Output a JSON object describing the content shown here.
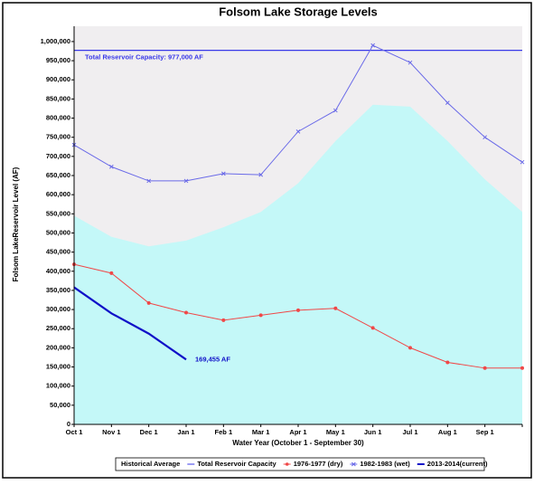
{
  "chart_data": {
    "type": "line",
    "title": "Folsom Lake Storage Levels",
    "ylabel": "Folsom LakeReservoir Level (AF)",
    "xlabel": "Water Year (October 1 - September 30)",
    "categories": [
      "Oct 1",
      "Nov 1",
      "Dec 1",
      "Jan 1",
      "Feb 1",
      "Mar 1",
      "Apr 1",
      "May 1",
      "Jun 1",
      "Jul 1",
      "Aug 1",
      "Sep 1",
      null
    ],
    "ylim": [
      0,
      1040000
    ],
    "yticks": [
      {
        "value": 0,
        "label": "0"
      },
      {
        "value": 50000,
        "label": "50,000"
      },
      {
        "value": 100000,
        "label": "100,000"
      },
      {
        "value": 150000,
        "label": "150,000"
      },
      {
        "value": 200000,
        "label": "200,000"
      },
      {
        "value": 250000,
        "label": "250,000"
      },
      {
        "value": 300000,
        "label": "300,000"
      },
      {
        "value": 350000,
        "label": "350,000"
      },
      {
        "value": 400000,
        "label": "400,000"
      },
      {
        "value": 450000,
        "label": "450,000"
      },
      {
        "value": 500000,
        "label": "500,000"
      },
      {
        "value": 550000,
        "label": "550,000"
      },
      {
        "value": 600000,
        "label": "600,000"
      },
      {
        "value": 650000,
        "label": "650,000"
      },
      {
        "value": 700000,
        "label": "700,000"
      },
      {
        "value": 750000,
        "label": "750,000"
      },
      {
        "value": 800000,
        "label": "800,000"
      },
      {
        "value": 850000,
        "label": "850,000"
      },
      {
        "value": 900000,
        "label": "900,000"
      },
      {
        "value": 950000,
        "label": "950,000"
      },
      {
        "value": 1000000,
        "label": "1,000,000"
      }
    ],
    "background_color": "#f0eef0",
    "series": [
      {
        "name": "Historical Average",
        "kind": "area",
        "color": "#c4f8f8",
        "values": [
          545000,
          490000,
          465000,
          480000,
          515000,
          555000,
          630000,
          740000,
          835000,
          830000,
          740000,
          640000,
          555000
        ]
      },
      {
        "name": "Total Reservoir Capacity",
        "kind": "constant",
        "color": "#3a3ae8",
        "value": 977000,
        "annotation": "Total Reservoir Capacity: 977,000 AF"
      },
      {
        "name": "1976-1977 (dry)",
        "kind": "line",
        "marker": "circle",
        "color": "#f04848",
        "values": [
          418000,
          395000,
          317000,
          292000,
          272000,
          285000,
          298000,
          303000,
          252000,
          200000,
          162000,
          147000,
          147000
        ]
      },
      {
        "name": "1982-1983 (wet)",
        "kind": "line",
        "marker": "cross",
        "color": "#6a6ae8",
        "values": [
          730000,
          673000,
          636000,
          636000,
          655000,
          652000,
          765000,
          820000,
          990000,
          945000,
          840000,
          750000,
          685000
        ]
      },
      {
        "name": "2013-2014(current)",
        "kind": "thick",
        "color": "#1010c8",
        "values": [
          358000,
          290000,
          237000,
          169455,
          null,
          null,
          null,
          null,
          null,
          null,
          null,
          null,
          null
        ],
        "value_labels": [
          null,
          null,
          null,
          "169,455 AF",
          null,
          null,
          null,
          null,
          null,
          null,
          null,
          null,
          null
        ]
      }
    ]
  }
}
